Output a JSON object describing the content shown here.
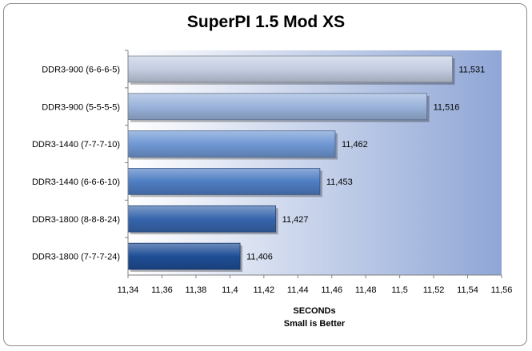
{
  "chart_data": {
    "type": "bar",
    "orientation": "horizontal",
    "title": "SuperPI 1.5 Mod XS",
    "xlabel": "SECONDs",
    "xlabel_sub": "Small  is Better",
    "ylabel": "",
    "xlim": [
      11.34,
      11.56
    ],
    "xticks": [
      "11,34",
      "11,36",
      "11,38",
      "11,4",
      "11,42",
      "11,44",
      "11,46",
      "11,48",
      "11,5",
      "11,52",
      "11,54",
      "11,56"
    ],
    "categories": [
      "DDR3-900 (6-6-6-5)",
      "DDR3-900 (5-5-5-5)",
      "DDR3-1440 (7-7-7-10)",
      "DDR3-1440 (6-6-6-10)",
      "DDR3-1800 (8-8-8-24)",
      "DDR3-1800 (7-7-7-24)"
    ],
    "values": [
      11.531,
      11.516,
      11.462,
      11.453,
      11.427,
      11.406
    ],
    "value_labels": [
      "11,531",
      "11,516",
      "11,462",
      "11,453",
      "11,427",
      "11,406"
    ],
    "grid": false,
    "colors": {
      "bar_light": "#c4cee2",
      "bar_mid": "#5b8ad0",
      "bar_dark": "#1f4e96",
      "plot_bg_left": "#ffffff",
      "plot_bg_right": "#8fa6d6"
    }
  }
}
